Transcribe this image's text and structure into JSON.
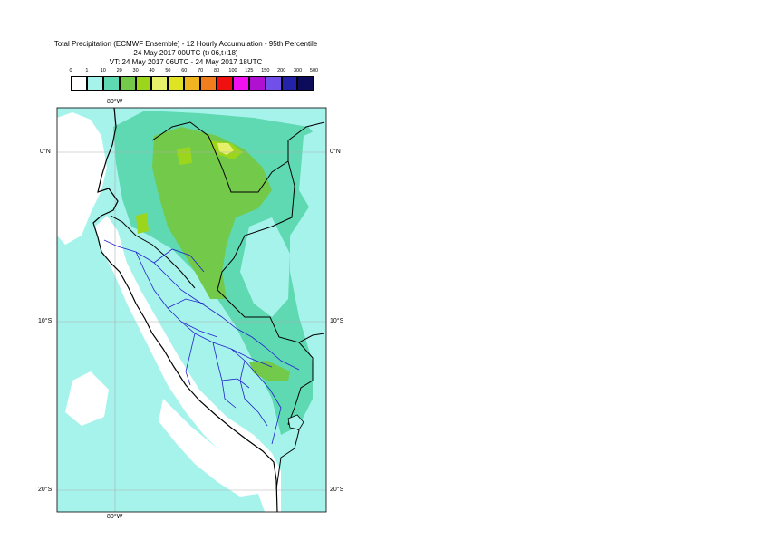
{
  "header": {
    "line1": "Total Precipitation (ECMWF Ensemble) - 12 Hourly Accumulation - 95th Percentile",
    "line2": "24 May 2017 00UTC (t+06,t+18)",
    "line3": "VT: 24 May 2017 06UTC - 24 May 2017 18UTC"
  },
  "legend": {
    "labels": [
      "0",
      "1",
      "10",
      "20",
      "30",
      "40",
      "50",
      "60",
      "70",
      "80",
      "100",
      "125",
      "150",
      "200",
      "300",
      "500"
    ],
    "colors": [
      "#ffffff",
      "#a6f3ec",
      "#5ed9b2",
      "#72c94a",
      "#9bd61c",
      "#e6f06a",
      "#dfe323",
      "#f0b420",
      "#f07e1c",
      "#f01010",
      "#f010f0",
      "#b010d0",
      "#7050e8",
      "#2222aa",
      "#0c0c5a"
    ]
  },
  "axes": {
    "lon_top": "80°W",
    "lon_bottom": "80°W",
    "lat_left": [
      "0°N",
      "10°S",
      "20°S"
    ],
    "lat_right": [
      "0°N",
      "10°S",
      "20°S"
    ]
  }
}
